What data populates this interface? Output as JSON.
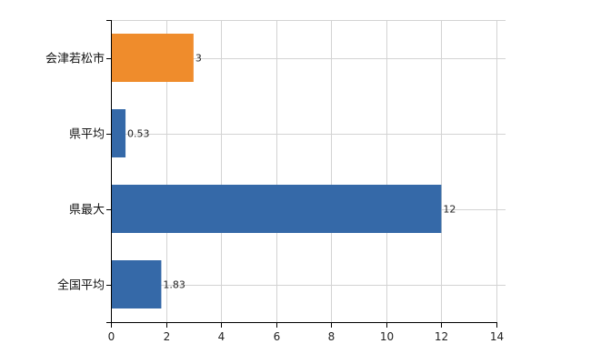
{
  "chart_data": {
    "type": "bar",
    "orientation": "horizontal",
    "categories": [
      "会津若松市",
      "県平均",
      "県最大",
      "全国平均"
    ],
    "values": [
      3,
      0.53,
      12,
      1.83
    ],
    "value_labels": [
      "3",
      "0.53",
      "12",
      "1.83"
    ],
    "bar_colors": [
      "#ef8c2c",
      "#3569a8",
      "#3569a8",
      "#3569a8"
    ],
    "title": "",
    "xlabel": "",
    "ylabel": "",
    "xlim": [
      0,
      14
    ],
    "xticks": [
      0,
      2,
      4,
      6,
      8,
      10,
      12,
      14
    ],
    "xtick_labels": [
      "0",
      "2",
      "4",
      "6",
      "8",
      "10",
      "12",
      "14"
    ],
    "grid": true,
    "grid_color": "#d3d3d3",
    "axis_color": "#000000",
    "legend": false
  }
}
